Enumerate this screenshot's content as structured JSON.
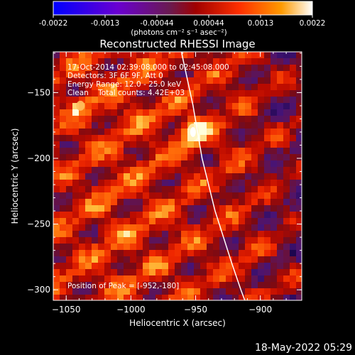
{
  "colorbar": {
    "ticks": [
      "-0.0022",
      "-0.0013",
      "-0.00044",
      "0.00044",
      "0.0013",
      "0.0022"
    ],
    "unit_label": "(photons cm⁻² s⁻¹ asec⁻²)"
  },
  "chart_data": {
    "type": "heatmap",
    "title": "Reconstructed RHESSI Image",
    "xlabel": "Heliocentric X (arcsec)",
    "ylabel": "Heliocentric Y (arcsec)",
    "xlim": [
      -1060,
      -868
    ],
    "ylim": [
      -308,
      -119
    ],
    "xticks": [
      -1050,
      -1000,
      -950,
      -900
    ],
    "xtick_labels": [
      "−1050",
      "−1000",
      "−950",
      "−900"
    ],
    "yticks": [
      -150,
      -200,
      -250,
      -300
    ],
    "ytick_labels": [
      "−150",
      "−200",
      "−250",
      "−300"
    ],
    "zlim": [
      -0.0022,
      0.0022
    ],
    "peak": {
      "x": -952,
      "y": -180
    },
    "secondary_source": {
      "x": -1039,
      "y": -160
    },
    "limb_curve": [
      [
        -961,
        -119
      ],
      [
        -952,
        -160
      ],
      [
        -945,
        -200
      ],
      [
        -935,
        -240
      ],
      [
        -922,
        -280
      ],
      [
        -915,
        -300
      ],
      [
        -912,
        -308
      ]
    ],
    "annotations": [
      "17-Oct-2014 02:39:08.000 to 02:45:08.000",
      "Detectors: 3F 6F 9F, Att 0",
      "Energy Range: 12.0 - 25.0 keV",
      "Clean    Total counts: 4.42E+03"
    ],
    "peak_label": "Position of Peak = [-952,-180]"
  },
  "footer": {
    "date": "18-May-2022 05:29"
  }
}
